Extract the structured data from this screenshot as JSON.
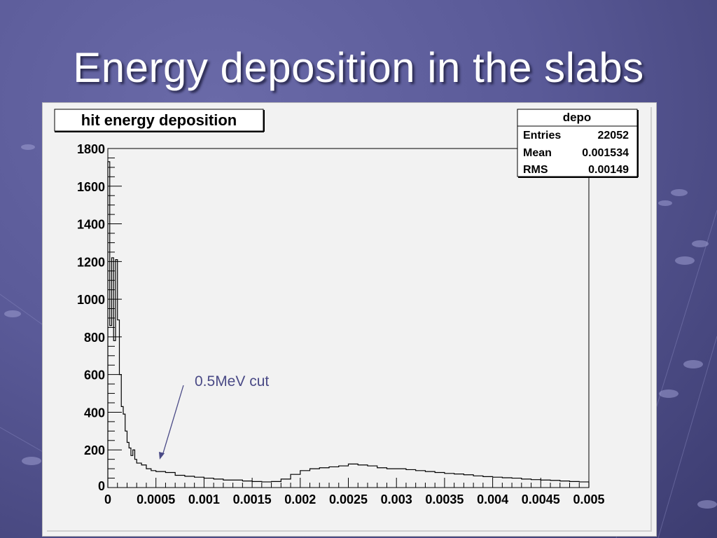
{
  "slide": {
    "title": "Energy deposition in the slabs"
  },
  "chart_data": {
    "type": "histogram",
    "title": "hit energy deposition",
    "xlabel": "",
    "ylabel": "",
    "xlim": [
      0,
      0.005
    ],
    "ylim": [
      0,
      1800
    ],
    "x_ticks": [
      0,
      0.0005,
      0.001,
      0.0015,
      0.002,
      0.0025,
      0.003,
      0.0035,
      0.004,
      0.0045,
      0.005
    ],
    "x_tick_labels": [
      "0",
      "0.0005",
      "0.001",
      "0.0015",
      "0.002",
      "0.0025",
      "0.003",
      "0.0035",
      "0.004",
      "0.0045",
      "0.005"
    ],
    "y_ticks": [
      0,
      200,
      400,
      600,
      800,
      1000,
      1200,
      1400,
      1600,
      1800
    ],
    "y_tick_labels": [
      "0",
      "200",
      "400",
      "600",
      "800",
      "1000",
      "1200",
      "1400",
      "1600",
      "1800"
    ],
    "grid": false,
    "line_color": "#000000",
    "stats_box": {
      "name": "depo",
      "rows": [
        {
          "label": "Entries",
          "value": "22052"
        },
        {
          "label": "Mean",
          "value": "0.001534"
        },
        {
          "label": "RMS",
          "value": "0.00149"
        }
      ]
    },
    "annotation": {
      "text": "0.5MeV cut",
      "x": 0.0005,
      "y": 150,
      "color": "#4a4a86"
    },
    "series": [
      {
        "x_edges": [
          0,
          2e-05,
          4e-05,
          6e-05,
          8e-05,
          0.0001,
          0.00012,
          0.00014,
          0.00016,
          0.00018,
          0.0002,
          0.00022,
          0.00024,
          0.00026,
          0.00028,
          0.0003,
          0.00035,
          0.0004,
          0.00045,
          0.0005,
          0.0006,
          0.0007,
          0.0008,
          0.0009,
          0.001,
          0.0011,
          0.0012,
          0.0013,
          0.0014,
          0.0015,
          0.0016,
          0.0017,
          0.0018,
          0.0019,
          0.002,
          0.0021,
          0.0022,
          0.0023,
          0.0024,
          0.0025,
          0.0026,
          0.0027,
          0.0028,
          0.0029,
          0.003,
          0.0031,
          0.0032,
          0.0033,
          0.0034,
          0.0035,
          0.0036,
          0.0037,
          0.0038,
          0.0039,
          0.004,
          0.0041,
          0.0042,
          0.0043,
          0.0044,
          0.0045,
          0.0046,
          0.0047,
          0.0048,
          0.0049,
          0.005
        ],
        "values": [
          1730,
          860,
          1220,
          780,
          1210,
          890,
          600,
          430,
          390,
          300,
          240,
          210,
          170,
          200,
          150,
          130,
          120,
          100,
          90,
          85,
          80,
          65,
          60,
          55,
          50,
          45,
          40,
          40,
          35,
          32,
          30,
          32,
          45,
          70,
          90,
          100,
          105,
          110,
          115,
          125,
          120,
          115,
          105,
          100,
          100,
          95,
          90,
          85,
          80,
          75,
          72,
          68,
          62,
          58,
          55,
          52,
          50,
          45,
          42,
          40,
          38,
          35,
          32,
          30
        ]
      }
    ]
  }
}
